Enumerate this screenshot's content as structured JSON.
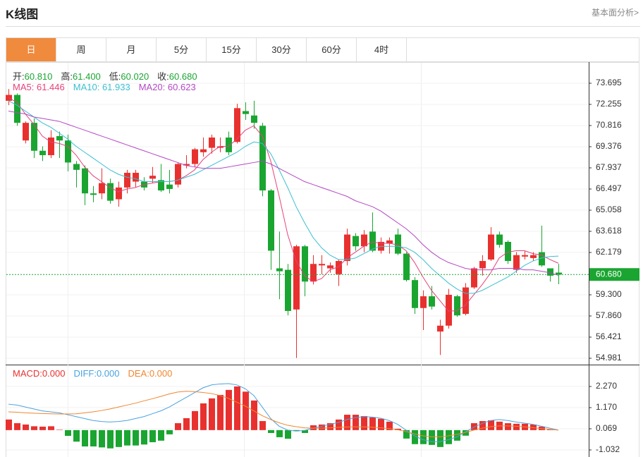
{
  "header": {
    "title": "K线图",
    "link": "基本面分析>"
  },
  "tabs": [
    "日",
    "周",
    "月",
    "5分",
    "15分",
    "30分",
    "60分",
    "4时"
  ],
  "active_tab": 0,
  "chart_data": [
    {
      "type": "candlestick",
      "categories": [
        null,
        null,
        null,
        null,
        null,
        null,
        null,
        null,
        null,
        null,
        null,
        null,
        null,
        null,
        null,
        null,
        null,
        null,
        null,
        null,
        null,
        null,
        null,
        null,
        null,
        null,
        null,
        null,
        null,
        null,
        null,
        null,
        null,
        null,
        null,
        null,
        null,
        null,
        null,
        null,
        null,
        null,
        null,
        null,
        null,
        null,
        null,
        null,
        null,
        null,
        null,
        null,
        null,
        null,
        null,
        null,
        null,
        null,
        null,
        null,
        null,
        null,
        null,
        null,
        null,
        null
      ],
      "open": [
        72.5,
        72.9,
        69.8,
        71.0,
        69.1,
        68.8,
        70.1,
        69.8,
        68.2,
        67.9,
        66.2,
        66.2,
        66.9,
        65.8,
        66.6,
        67.0,
        67.0,
        67.2,
        67.1,
        66.8,
        66.8,
        68.1,
        68.2,
        69.0,
        69.3,
        69.3,
        70.0,
        69.7,
        71.8,
        71.5,
        70.8,
        66.4,
        61.1,
        61.0,
        58.3,
        62.6,
        60.2,
        61.3,
        61.1,
        60.7,
        61.6,
        63.3,
        62.6,
        63.6,
        62.3,
        62.8,
        63.4,
        62.1,
        60.3,
        58.4,
        59.2,
        56.8,
        57.2,
        59.2,
        58.0,
        59.8,
        61.1,
        61.7,
        63.4,
        62.9,
        61.0,
        61.9,
        61.8,
        62.2,
        61.1,
        60.81
      ],
      "high": [
        73.3,
        73.0,
        71.1,
        71.3,
        69.4,
        70.5,
        70.4,
        70.2,
        68.4,
        68.1,
        66.7,
        67.9,
        67.2,
        67.0,
        67.8,
        67.8,
        67.3,
        68.0,
        68.2,
        67.8,
        68.3,
        68.8,
        69.3,
        70.0,
        70.2,
        70.0,
        70.4,
        72.3,
        72.4,
        72.5,
        71.0,
        66.5,
        63.6,
        61.4,
        62.7,
        62.7,
        62.0,
        62.0,
        61.5,
        61.7,
        63.8,
        63.5,
        63.7,
        64.9,
        63.2,
        63.2,
        63.8,
        62.2,
        60.5,
        59.6,
        59.9,
        57.6,
        59.7,
        59.3,
        60.1,
        61.2,
        62.0,
        63.9,
        63.6,
        63.0,
        62.2,
        62.3,
        62.2,
        64.0,
        61.1,
        61.4
      ],
      "low": [
        72.2,
        70.8,
        69.6,
        68.6,
        68.4,
        68.6,
        68.6,
        67.7,
        66.6,
        65.4,
        65.6,
        65.8,
        65.5,
        65.3,
        66.2,
        66.6,
        66.4,
        66.9,
        66.3,
        66.2,
        66.6,
        67.9,
        68.0,
        68.7,
        68.9,
        69.0,
        68.8,
        69.6,
        71.2,
        70.6,
        66.0,
        61.0,
        59.0,
        57.9,
        55.0,
        59.2,
        60.0,
        60.7,
        60.8,
        59.9,
        61.3,
        62.3,
        62.2,
        62.2,
        62.1,
        62.1,
        62.0,
        60.2,
        58.0,
        56.9,
        58.3,
        55.2,
        57.0,
        57.8,
        57.9,
        59.7,
        60.6,
        61.6,
        62.5,
        61.4,
        60.8,
        61.7,
        61.6,
        61.2,
        60.2,
        60.02
      ],
      "close": [
        72.9,
        71.0,
        71.0,
        69.1,
        68.8,
        70.0,
        69.8,
        68.3,
        67.8,
        66.2,
        66.1,
        66.9,
        65.7,
        66.6,
        67.6,
        67.6,
        66.6,
        67.4,
        66.4,
        66.5,
        68.2,
        68.2,
        69.2,
        69.2,
        70.0,
        69.4,
        69.0,
        72.0,
        71.6,
        71.0,
        66.4,
        62.3,
        60.9,
        58.2,
        62.6,
        60.2,
        61.4,
        61.4,
        61.3,
        61.6,
        63.4,
        62.6,
        63.4,
        62.3,
        62.9,
        63.0,
        62.1,
        60.3,
        58.4,
        59.2,
        58.5,
        57.2,
        59.3,
        57.9,
        59.8,
        61.1,
        61.6,
        63.4,
        62.7,
        61.6,
        62.0,
        62.0,
        62.0,
        61.3,
        60.6,
        60.68
      ],
      "up_color": "#e8312f",
      "down_color": "#1aa531",
      "quote": {
        "names": [
          "开:",
          "高:",
          "低:",
          "收:"
        ],
        "values": [
          60.81,
          61.4,
          60.02,
          60.68
        ],
        "value_labels": [
          "60.810",
          "61.400",
          "60.020",
          "60.680"
        ],
        "name_color": "#333333",
        "value_color": "#1aa531"
      },
      "last_price": {
        "value": 60.68,
        "label": "60.680",
        "color": "#1aa531"
      },
      "series": [
        {
          "name": "MA5:",
          "color": "#e6417a",
          "values": [
            72.7,
            72.4,
            71.6,
            70.9,
            70.1,
            69.7,
            69.6,
            69.4,
            68.8,
            68.0,
            67.4,
            67.0,
            66.6,
            66.3,
            66.5,
            66.6,
            66.8,
            66.9,
            67.0,
            67.0,
            67.1,
            67.4,
            67.8,
            68.5,
            69.0,
            69.4,
            69.4,
            69.9,
            70.5,
            70.8,
            70.1,
            68.4,
            66.0,
            63.4,
            61.6,
            60.6,
            60.2,
            60.4,
            61.0,
            61.2,
            61.8,
            62.2,
            62.6,
            62.9,
            62.8,
            62.8,
            62.7,
            62.3,
            61.5,
            60.5,
            59.6,
            58.9,
            58.2,
            58.2,
            58.6,
            59.3,
            60.0,
            60.8,
            61.8,
            62.2,
            62.3,
            62.3,
            62.1,
            62.0,
            61.7,
            61.446
          ]
        },
        {
          "name": "MA10:",
          "color": "#3bbfd0",
          "values": [
            72.5,
            72.2,
            71.8,
            71.4,
            71.0,
            70.7,
            70.3,
            69.9,
            69.4,
            69.0,
            68.6,
            68.2,
            67.8,
            67.5,
            67.3,
            67.2,
            67.0,
            67.0,
            67.0,
            67.0,
            67.1,
            67.3,
            67.5,
            67.8,
            68.1,
            68.4,
            68.7,
            69.0,
            69.4,
            69.7,
            69.6,
            68.9,
            67.8,
            66.6,
            65.3,
            64.2,
            63.2,
            62.5,
            62.0,
            61.7,
            61.7,
            61.8,
            62.1,
            62.4,
            62.6,
            62.6,
            62.6,
            62.5,
            62.2,
            61.7,
            61.1,
            60.6,
            60.1,
            59.7,
            59.4,
            59.4,
            59.6,
            59.9,
            60.2,
            60.5,
            60.9,
            61.3,
            61.6,
            61.8,
            61.9,
            61.933
          ]
        },
        {
          "name": "MA20:",
          "color": "#b547c4",
          "values": [
            71.8,
            71.7,
            71.6,
            71.4,
            71.3,
            71.2,
            71.1,
            70.9,
            70.7,
            70.5,
            70.3,
            70.1,
            69.9,
            69.7,
            69.5,
            69.3,
            69.1,
            68.9,
            68.7,
            68.5,
            68.3,
            68.1,
            68.0,
            67.9,
            67.9,
            67.9,
            68.0,
            68.1,
            68.2,
            68.3,
            68.4,
            68.2,
            67.9,
            67.6,
            67.3,
            67.0,
            66.8,
            66.6,
            66.4,
            66.2,
            66.0,
            65.7,
            65.5,
            65.3,
            65.0,
            64.6,
            64.2,
            63.8,
            63.3,
            62.7,
            62.2,
            61.8,
            61.5,
            61.3,
            61.1,
            61.0,
            61.0,
            61.0,
            61.1,
            61.1,
            61.1,
            61.0,
            61.0,
            60.9,
            60.8,
            60.623
          ]
        }
      ],
      "ylim": [
        54.645,
        74.943
      ],
      "yticks": [
        73.695,
        72.255,
        70.816,
        69.376,
        67.937,
        66.497,
        65.058,
        63.618,
        62.179,
        {
          "value": 59.3,
          "label": "59.300"
        },
        {
          "value": 57.86,
          "label": "57.860"
        },
        56.421,
        54.981
      ],
      "grid": true
    },
    {
      "type": "macd",
      "series": [
        {
          "name": "MACD:",
          "kind": "bar",
          "color": "#e8312f",
          "negative_color": "#1aa531",
          "current_label": "0.000",
          "values": [
            0.55,
            0.36,
            0.29,
            0.2,
            0.18,
            0.2,
            0.02,
            -0.3,
            -0.6,
            -0.85,
            -0.85,
            -0.9,
            -0.95,
            -0.88,
            -0.8,
            -0.8,
            -0.75,
            -0.63,
            -0.55,
            -0.22,
            0.36,
            0.62,
            0.99,
            1.39,
            1.65,
            1.83,
            2.09,
            2.27,
            2.0,
            1.54,
            0.47,
            -0.15,
            -0.37,
            -0.45,
            -0.04,
            -0.15,
            0.25,
            0.29,
            0.36,
            0.55,
            0.8,
            0.8,
            0.73,
            0.66,
            0.59,
            0.44,
            0.07,
            -0.44,
            -0.73,
            -0.73,
            -0.77,
            -0.88,
            -0.73,
            -0.55,
            -0.29,
            0.36,
            0.47,
            0.51,
            0.44,
            0.36,
            0.33,
            0.33,
            0.29,
            0.18,
            0.03,
            0
          ]
        },
        {
          "name": "DIFF:",
          "kind": "line",
          "color": "#4aa3df",
          "current_label": "0.000",
          "values": [
            1.35,
            1.3,
            1.2,
            1.1,
            1.0,
            0.95,
            0.9,
            0.8,
            0.7,
            0.6,
            0.5,
            0.45,
            0.42,
            0.45,
            0.5,
            0.6,
            0.7,
            0.85,
            1.0,
            1.2,
            1.45,
            1.7,
            1.95,
            2.2,
            2.35,
            2.4,
            2.42,
            2.35,
            2.15,
            1.8,
            1.2,
            0.6,
            0.2,
            0.0,
            -0.05,
            -0.02,
            0.1,
            0.2,
            0.3,
            0.4,
            0.55,
            0.65,
            0.7,
            0.68,
            0.62,
            0.5,
            0.3,
            0.0,
            -0.3,
            -0.5,
            -0.6,
            -0.6,
            -0.5,
            -0.35,
            -0.1,
            0.15,
            0.35,
            0.5,
            0.55,
            0.5,
            0.42,
            0.36,
            0.3,
            0.2,
            0.1,
            0.0
          ]
        },
        {
          "name": "DEA:",
          "kind": "line",
          "color": "#f0862f",
          "current_label": "0.000",
          "values": [
            0.95,
            0.93,
            0.9,
            0.88,
            0.86,
            0.85,
            0.84,
            0.84,
            0.85,
            0.9,
            0.95,
            1.02,
            1.1,
            1.2,
            1.3,
            1.4,
            1.52,
            1.63,
            1.75,
            1.88,
            1.98,
            2.02,
            2.0,
            1.96,
            1.9,
            1.8,
            1.65,
            1.45,
            1.25,
            1.0,
            0.75,
            0.55,
            0.38,
            0.25,
            0.18,
            0.12,
            0.1,
            0.1,
            0.12,
            0.14,
            0.16,
            0.17,
            0.17,
            0.15,
            0.12,
            0.08,
            0.02,
            -0.08,
            -0.2,
            -0.3,
            -0.35,
            -0.35,
            -0.3,
            -0.22,
            -0.12,
            0.0,
            0.1,
            0.18,
            0.22,
            0.22,
            0.2,
            0.17,
            0.13,
            0.08,
            0.04,
            0.0
          ]
        }
      ],
      "ylim": [
        -1.399,
        3.37
      ],
      "yticks": [
        {
          "value": 2.27,
          "label": "2.270"
        },
        {
          "value": 1.17,
          "label": "1.170"
        },
        0.069,
        -1.032
      ],
      "grid": true
    }
  ]
}
